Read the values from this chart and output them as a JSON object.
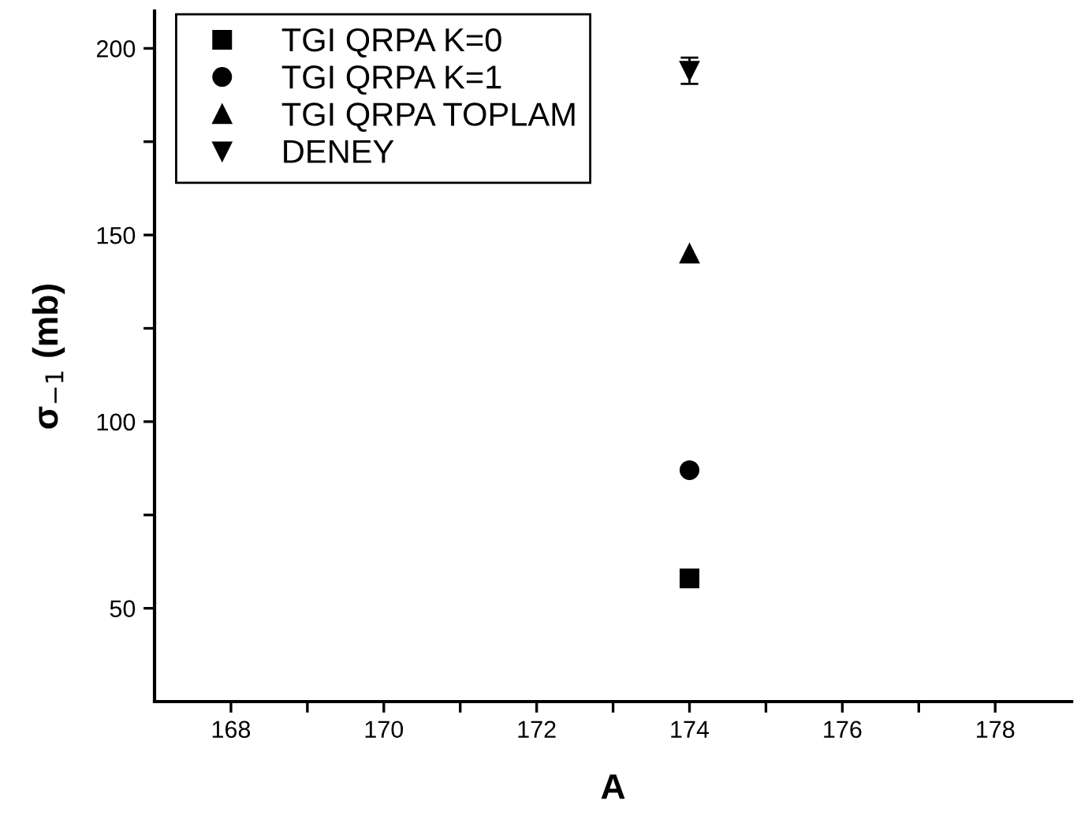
{
  "chart_data": {
    "type": "scatter",
    "xlabel": "A",
    "ylabel": "σ$_{−1}$ (mb)",
    "x": [
      174
    ],
    "xlim": [
      167,
      179
    ],
    "xticks": [
      168,
      {
        "value": 169,
        "label": null
      },
      170,
      {
        "value": 171,
        "label": null
      },
      172,
      {
        "value": 173,
        "label": null
      },
      174,
      {
        "value": 175,
        "label": null
      },
      176,
      {
        "value": 177,
        "label": null
      },
      178
    ],
    "ylim": [
      25,
      210
    ],
    "yticks": [
      50,
      {
        "value": 75,
        "label": null
      },
      100,
      {
        "value": 125,
        "label": null
      },
      150,
      {
        "value": 175,
        "label": null
      },
      200
    ],
    "legend": "top left",
    "grid": false,
    "series": [
      {
        "name": "TGI QRPA K=0",
        "color": "#000000",
        "marker": "square",
        "values": [
          58
        ]
      },
      {
        "name": "TGI QRPA K=1",
        "color": "#000000",
        "marker": "circle",
        "values": [
          87
        ]
      },
      {
        "name": "TGI QRPA TOPLAM",
        "color": "#000000",
        "marker": "triangle",
        "values": [
          145
        ]
      },
      {
        "name": "DENEY",
        "color": "#000000",
        "marker": "triangle_down",
        "values": [
          194
        ],
        "errors": [
          3.5
        ]
      }
    ]
  }
}
